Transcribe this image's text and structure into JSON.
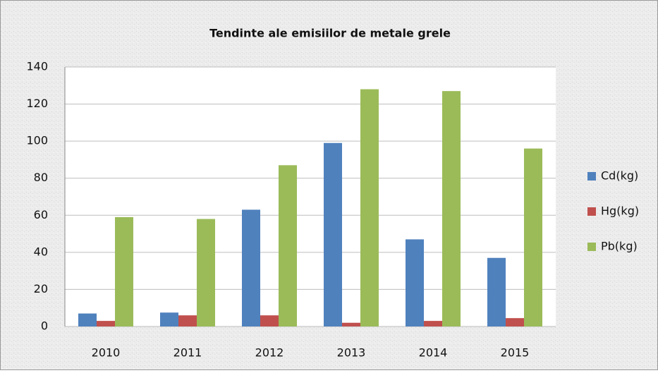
{
  "chart_data": {
    "type": "bar",
    "title": "Tendinte ale emisiilor de metale grele",
    "categories": [
      "2010",
      "2011",
      "2012",
      "2013",
      "2014",
      "2015"
    ],
    "series": [
      {
        "name": "Cd(kg)",
        "color": "#4f81bd",
        "values": [
          7,
          7.5,
          63,
          99,
          47,
          37
        ]
      },
      {
        "name": "Hg(kg)",
        "color": "#c0504d",
        "values": [
          3,
          6,
          6,
          2,
          3,
          4.5
        ]
      },
      {
        "name": "Pb(kg)",
        "color": "#9bbb59",
        "values": [
          59,
          58,
          87,
          128,
          127,
          96
        ]
      }
    ],
    "ylim": [
      0,
      140
    ],
    "yticks": [
      0,
      20,
      40,
      60,
      80,
      100,
      120,
      140
    ],
    "grid": true,
    "legend": "right"
  }
}
